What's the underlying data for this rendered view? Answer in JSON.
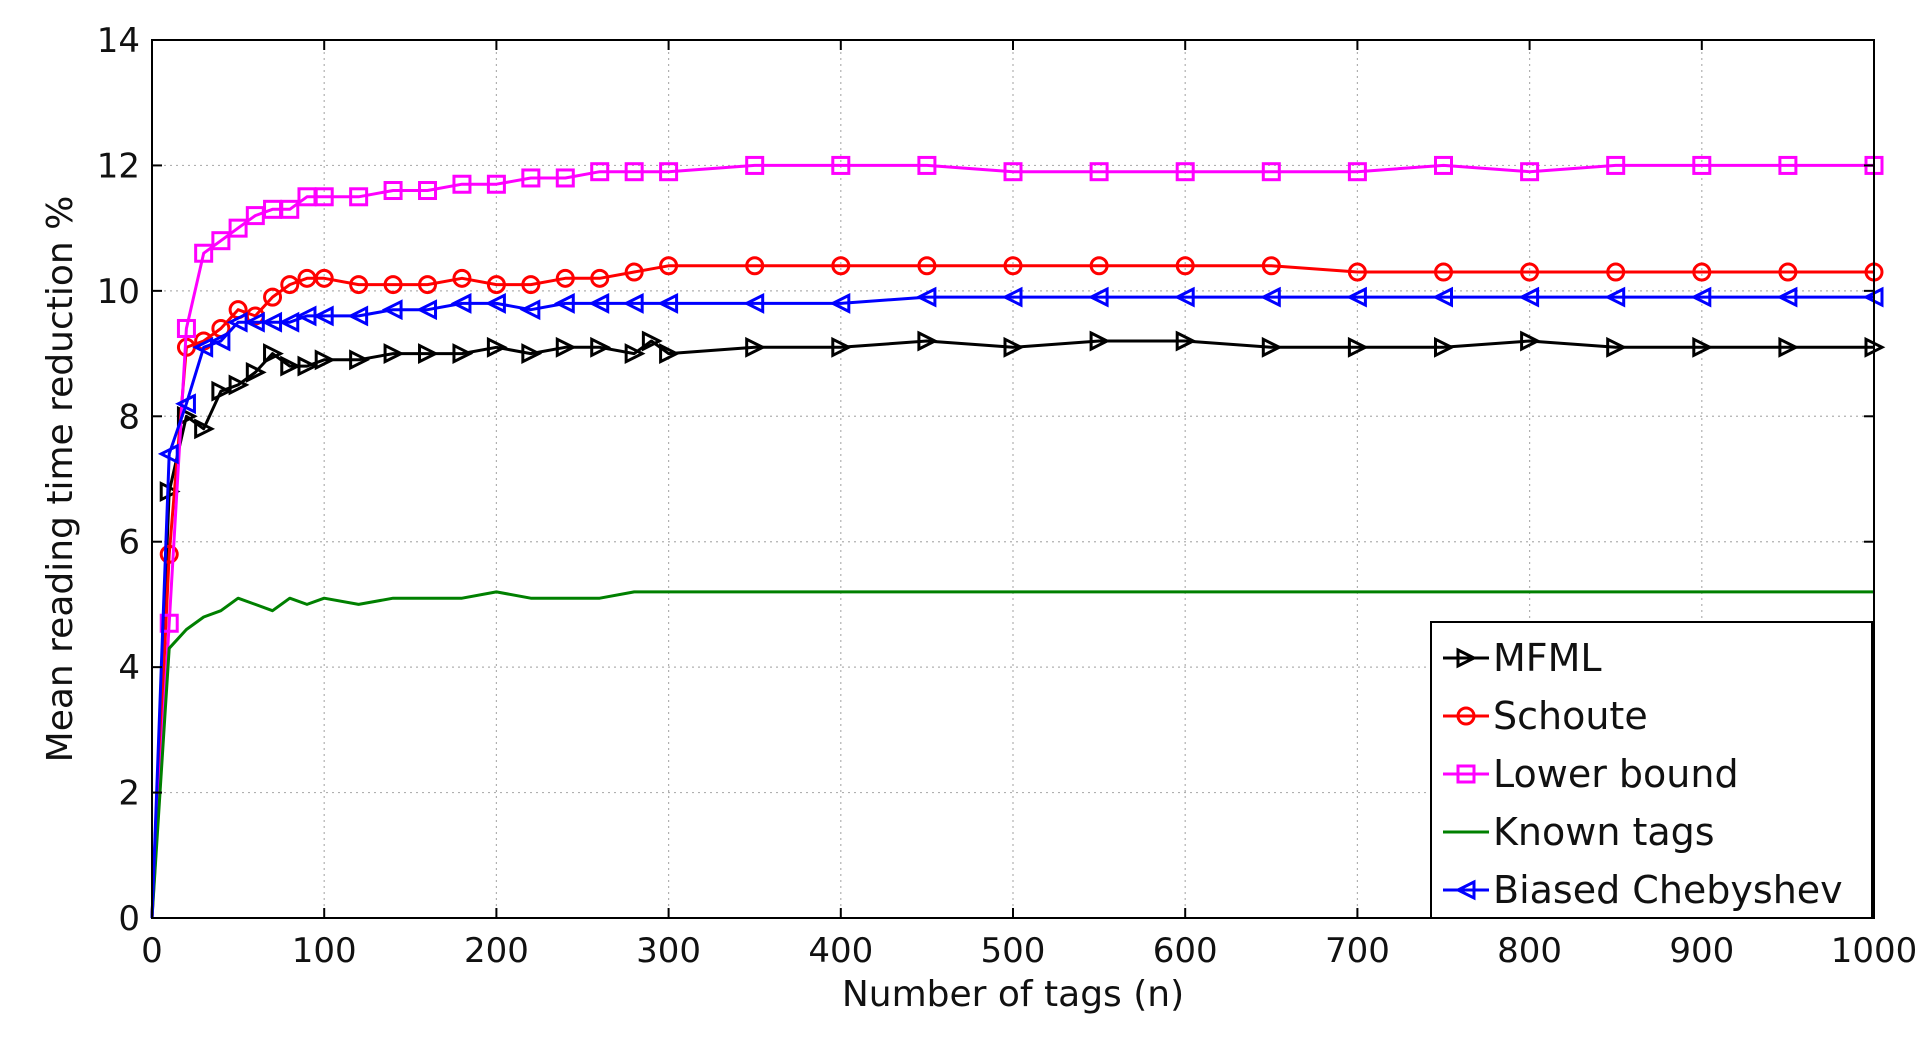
{
  "chart_data": {
    "type": "line",
    "xlabel": "Number of tags (n)",
    "ylabel": "Mean reading time reduction %",
    "xlim": [
      0,
      1000
    ],
    "ylim": [
      0,
      14
    ],
    "x_ticks": [
      0,
      100,
      200,
      300,
      400,
      500,
      600,
      700,
      800,
      900,
      1000
    ],
    "y_ticks": [
      0,
      2,
      4,
      6,
      8,
      10,
      12,
      14
    ],
    "grid": true,
    "legend_position": "bottom-right",
    "series": [
      {
        "name": "MFML",
        "color": "#000000",
        "marker": "triangle-right",
        "x": [
          0,
          10,
          20,
          30,
          40,
          50,
          60,
          70,
          80,
          90,
          100,
          120,
          140,
          160,
          180,
          200,
          220,
          240,
          260,
          280,
          290,
          300,
          350,
          400,
          450,
          500,
          550,
          600,
          650,
          700,
          750,
          800,
          850,
          900,
          950,
          1000
        ],
        "y": [
          0,
          6.8,
          8.0,
          7.8,
          8.4,
          8.5,
          8.7,
          9.0,
          8.8,
          8.8,
          8.9,
          8.9,
          9.0,
          9.0,
          9.0,
          9.1,
          9.0,
          9.1,
          9.1,
          9.0,
          9.2,
          9.0,
          9.1,
          9.1,
          9.2,
          9.1,
          9.2,
          9.2,
          9.1,
          9.1,
          9.1,
          9.2,
          9.1,
          9.1,
          9.1,
          9.1
        ]
      },
      {
        "name": "Schoute",
        "color": "#ff0000",
        "marker": "circle",
        "x": [
          0,
          10,
          20,
          30,
          40,
          50,
          60,
          70,
          80,
          90,
          100,
          120,
          140,
          160,
          180,
          200,
          220,
          240,
          260,
          280,
          300,
          350,
          400,
          450,
          500,
          550,
          600,
          650,
          700,
          750,
          800,
          850,
          900,
          950,
          1000
        ],
        "y": [
          0,
          5.8,
          9.1,
          9.2,
          9.4,
          9.7,
          9.6,
          9.9,
          10.1,
          10.2,
          10.2,
          10.1,
          10.1,
          10.1,
          10.2,
          10.1,
          10.1,
          10.2,
          10.2,
          10.3,
          10.4,
          10.4,
          10.4,
          10.4,
          10.4,
          10.4,
          10.4,
          10.4,
          10.3,
          10.3,
          10.3,
          10.3,
          10.3,
          10.3,
          10.3
        ]
      },
      {
        "name": "Lower bound",
        "color": "#ff00ff",
        "marker": "square",
        "x": [
          0,
          10,
          20,
          30,
          40,
          50,
          60,
          70,
          80,
          90,
          100,
          120,
          140,
          160,
          180,
          200,
          220,
          240,
          260,
          280,
          300,
          350,
          400,
          450,
          500,
          550,
          600,
          650,
          700,
          750,
          800,
          850,
          900,
          950,
          1000
        ],
        "y": [
          0,
          4.7,
          9.4,
          10.6,
          10.8,
          11.0,
          11.2,
          11.3,
          11.3,
          11.5,
          11.5,
          11.5,
          11.6,
          11.6,
          11.7,
          11.7,
          11.8,
          11.8,
          11.9,
          11.9,
          11.9,
          12.0,
          12.0,
          12.0,
          11.9,
          11.9,
          11.9,
          11.9,
          11.9,
          12.0,
          11.9,
          12.0,
          12.0,
          12.0,
          12.0
        ]
      },
      {
        "name": "Known tags",
        "color": "#008000",
        "marker": "none",
        "x": [
          0,
          10,
          20,
          30,
          40,
          50,
          60,
          70,
          80,
          90,
          100,
          120,
          140,
          160,
          180,
          200,
          220,
          240,
          260,
          280,
          300,
          350,
          400,
          450,
          500,
          550,
          600,
          650,
          700,
          750,
          800,
          850,
          900,
          950,
          1000
        ],
        "y": [
          0,
          4.3,
          4.6,
          4.8,
          4.9,
          5.1,
          5.0,
          4.9,
          5.1,
          5.0,
          5.1,
          5.0,
          5.1,
          5.1,
          5.1,
          5.2,
          5.1,
          5.1,
          5.1,
          5.2,
          5.2,
          5.2,
          5.2,
          5.2,
          5.2,
          5.2,
          5.2,
          5.2,
          5.2,
          5.2,
          5.2,
          5.2,
          5.2,
          5.2,
          5.2
        ]
      },
      {
        "name": "Biased Chebyshev",
        "color": "#0000ff",
        "marker": "triangle-left",
        "x": [
          0,
          10,
          20,
          30,
          40,
          50,
          60,
          70,
          80,
          90,
          100,
          120,
          140,
          160,
          180,
          200,
          220,
          240,
          260,
          280,
          300,
          350,
          400,
          450,
          500,
          550,
          600,
          650,
          700,
          750,
          800,
          850,
          900,
          950,
          1000
        ],
        "y": [
          0,
          7.4,
          8.2,
          9.1,
          9.2,
          9.5,
          9.5,
          9.5,
          9.5,
          9.6,
          9.6,
          9.6,
          9.7,
          9.7,
          9.8,
          9.8,
          9.7,
          9.8,
          9.8,
          9.8,
          9.8,
          9.8,
          9.8,
          9.9,
          9.9,
          9.9,
          9.9,
          9.9,
          9.9,
          9.9,
          9.9,
          9.9,
          9.9,
          9.9,
          9.9
        ]
      }
    ]
  }
}
